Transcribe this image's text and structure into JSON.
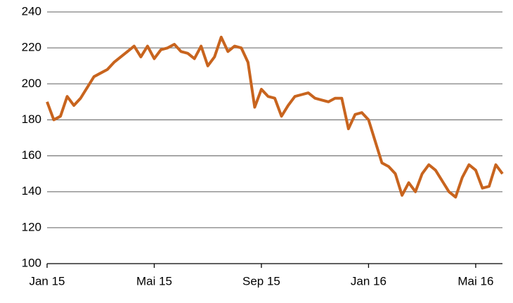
{
  "chart_data": {
    "type": "line",
    "categories": [
      "Jan 15",
      null,
      null,
      null,
      null,
      null,
      null,
      null,
      null,
      null,
      null,
      null,
      null,
      null,
      null,
      null,
      "Mai 15",
      null,
      null,
      null,
      null,
      null,
      null,
      null,
      null,
      null,
      null,
      null,
      null,
      null,
      null,
      null,
      "Sep 15",
      null,
      null,
      null,
      null,
      null,
      null,
      null,
      null,
      null,
      null,
      null,
      null,
      null,
      null,
      null,
      "Jan 16",
      null,
      null,
      null,
      null,
      null,
      null,
      null,
      null,
      null,
      null,
      null,
      null,
      null,
      null,
      null,
      "Mai 16",
      null,
      null,
      null,
      null
    ],
    "series": [
      {
        "name": null,
        "color": "#c8641e",
        "values": [
          190,
          180,
          182,
          193,
          188,
          192,
          198,
          204,
          206,
          208,
          212,
          215,
          218,
          221,
          215,
          221,
          214,
          219,
          220,
          222,
          218,
          217,
          214,
          221,
          210,
          215,
          226,
          218,
          221,
          220,
          212,
          187,
          197,
          193,
          192,
          182,
          188,
          193,
          194,
          195,
          192,
          191,
          190,
          192,
          192,
          175,
          183,
          184,
          180,
          168,
          156,
          154,
          150,
          138,
          145,
          140,
          150,
          155,
          152,
          146,
          140,
          137,
          148,
          155,
          152,
          142,
          143,
          155,
          150
        ]
      }
    ],
    "ylim": [
      100,
      240
    ],
    "yticks": [
      100,
      120,
      140,
      160,
      180,
      200,
      220,
      240
    ],
    "grid": true
  }
}
